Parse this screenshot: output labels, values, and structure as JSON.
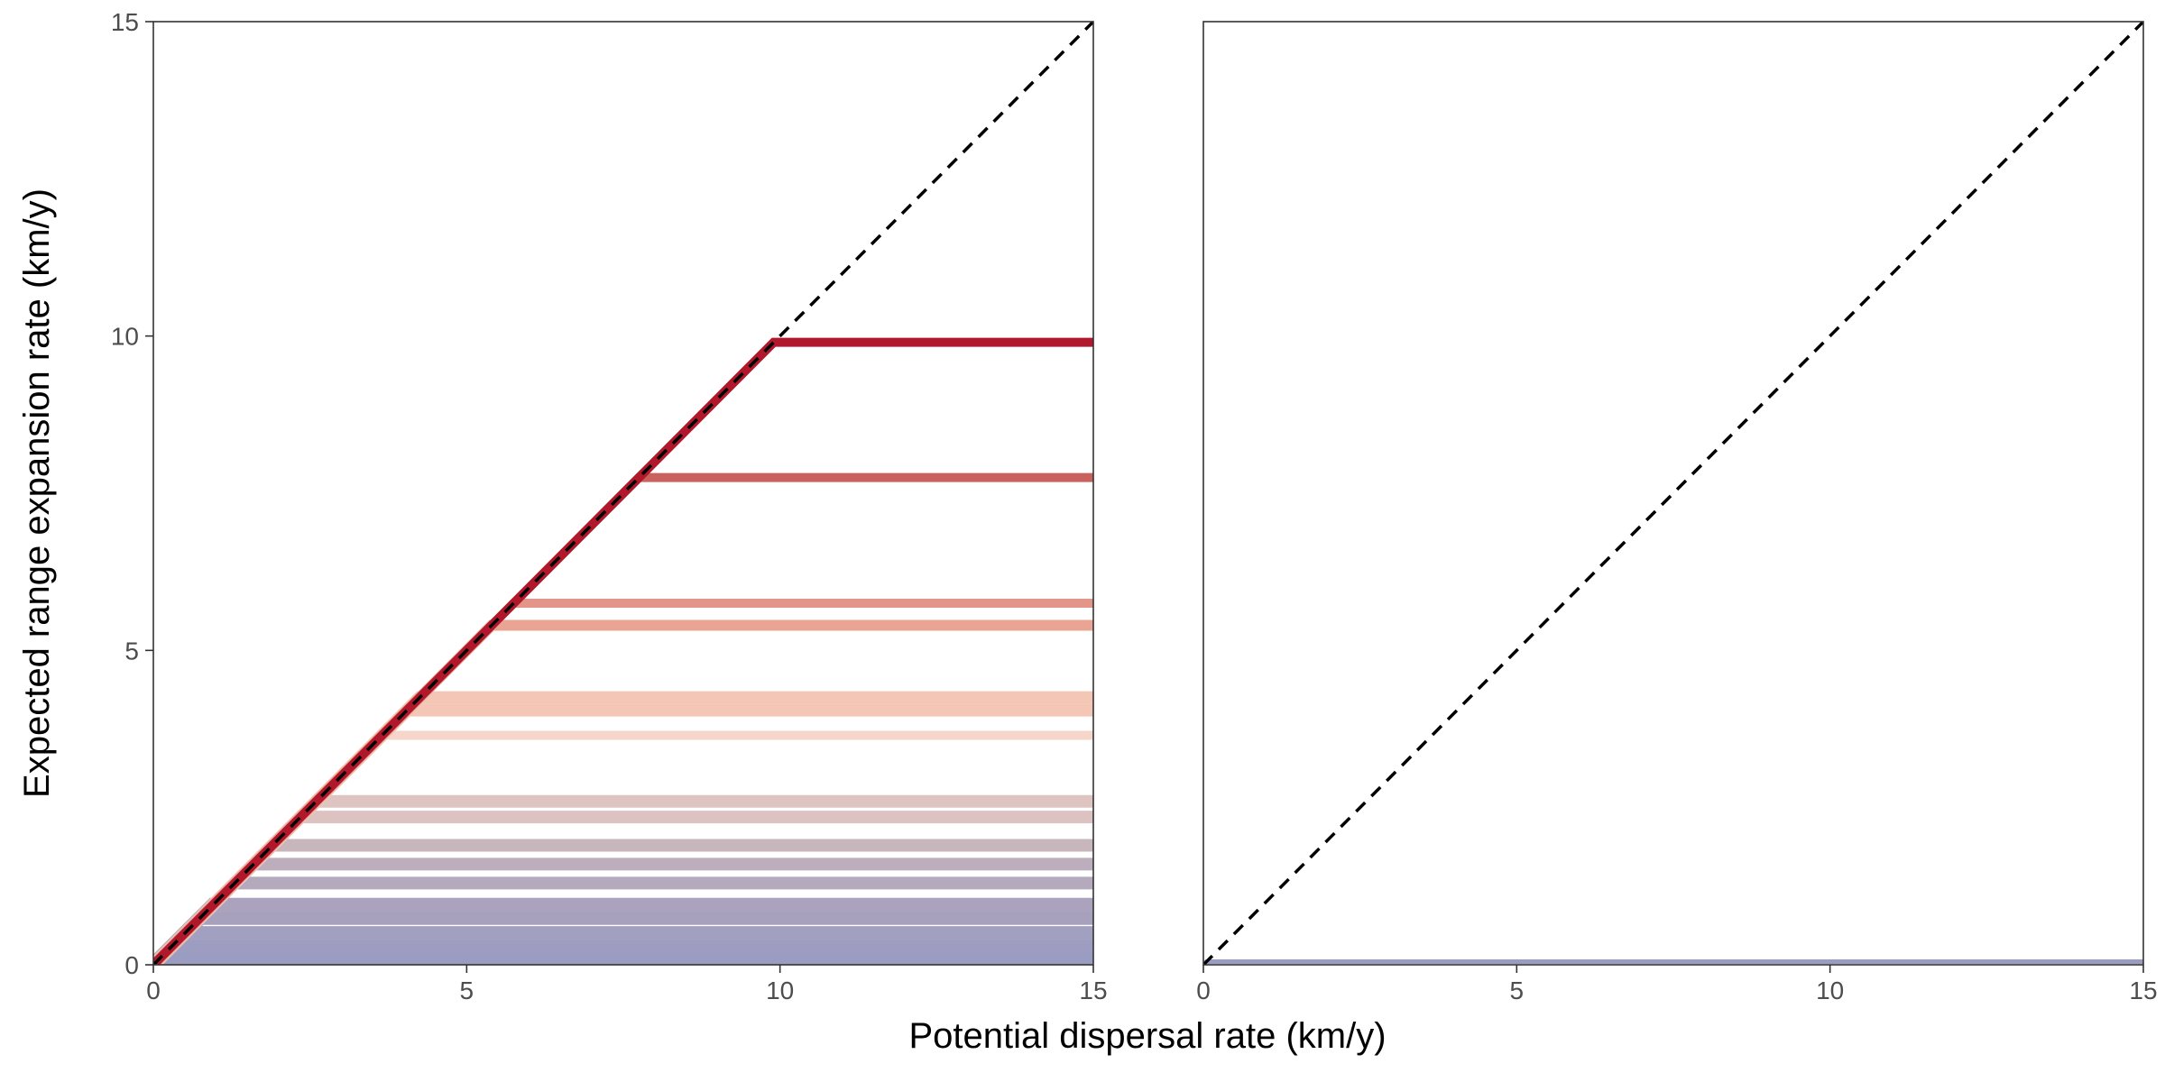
{
  "chart_data": {
    "type": "line",
    "xlabel": "Potential dispersal rate (km/y)",
    "ylabel": "Expected range expansion rate (km/y)",
    "xlim": [
      0,
      15
    ],
    "ylim": [
      0,
      15
    ],
    "x_ticks": [
      "0",
      "5",
      "10",
      "15"
    ],
    "y_ticks": [
      "0",
      "5",
      "10",
      "15"
    ],
    "grid": false,
    "legend": "none",
    "reference_line": {
      "style": "dashed",
      "color": "#000000",
      "from": [
        0,
        0
      ],
      "to": [
        15,
        15
      ]
    },
    "panels": [
      {
        "name": "left",
        "series": [
          {
            "cap": 9.9,
            "color": "#b2182b",
            "width": 10
          },
          {
            "cap": 7.75,
            "color": "#c9625c",
            "width": 10
          },
          {
            "cap": 5.75,
            "color": "#e4958a",
            "width": 10
          },
          {
            "cap": 5.4,
            "color": "#e9a494",
            "width": 12
          },
          {
            "cap": 4.25,
            "color": "#f3c6b6",
            "width": 14
          },
          {
            "cap": 4.05,
            "color": "#f3c6b6",
            "width": 14
          },
          {
            "cap": 3.65,
            "color": "#f6d5ca",
            "width": 10
          },
          {
            "cap": 2.6,
            "color": "#dfc5c2",
            "width": 14
          },
          {
            "cap": 2.35,
            "color": "#dcc3c2",
            "width": 14
          },
          {
            "cap": 1.9,
            "color": "#c8b6bd",
            "width": 14
          },
          {
            "cap": 1.6,
            "color": "#bcaebd",
            "width": 14
          },
          {
            "cap": 1.3,
            "color": "#b4a9bd",
            "width": 14
          },
          {
            "cap": 0.95,
            "color": "#aba3bd",
            "width": 16
          },
          {
            "cap": 0.75,
            "color": "#a8a1be",
            "width": 16
          },
          {
            "cap": 0.5,
            "color": "#a2a0c0",
            "width": 16
          },
          {
            "cap": 0.3,
            "color": "#9d9dc1",
            "width": 16
          },
          {
            "cap": 0.12,
            "color": "#9a9cc2",
            "width": 16
          }
        ]
      },
      {
        "name": "right",
        "series": [
          {
            "cap": 0.05,
            "color": "#9a9cc2",
            "width": 5
          }
        ]
      }
    ]
  }
}
